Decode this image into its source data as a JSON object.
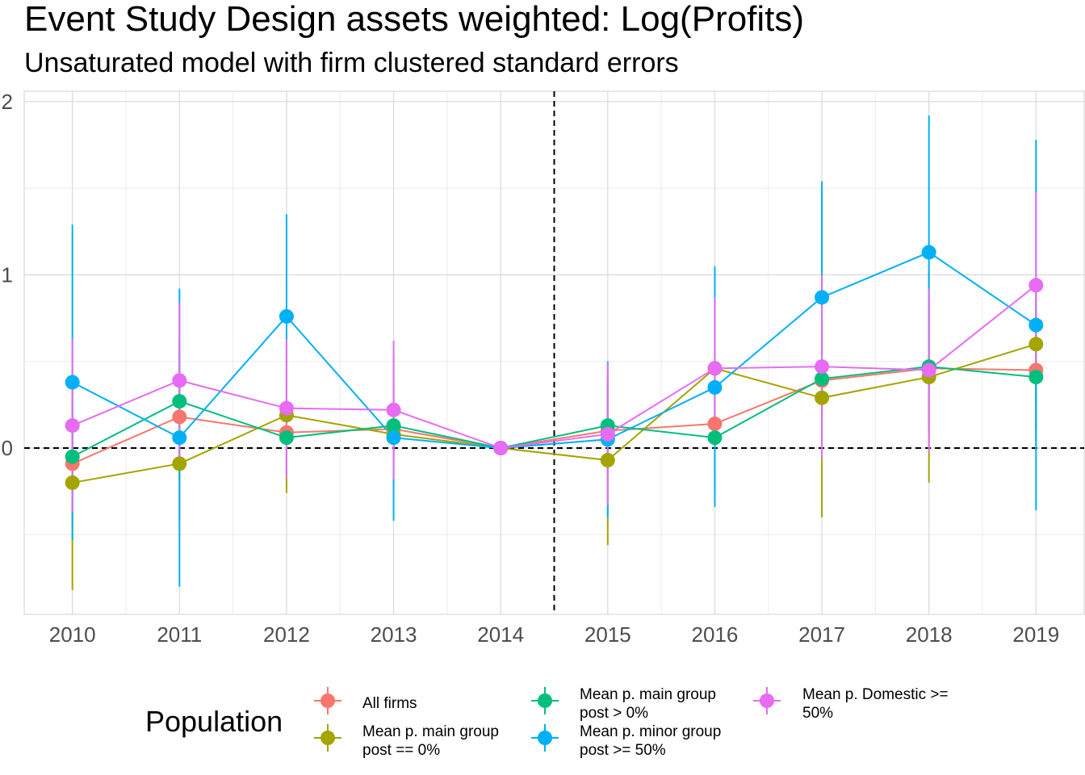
{
  "chart_data": {
    "type": "line",
    "title": "Event Study Design assets weighted: Log(Profits)",
    "subtitle": "Unsaturated model with firm clustered standard errors",
    "xlabel": "",
    "ylabel": "",
    "x": [
      "2010",
      "2011",
      "2012",
      "2013",
      "2014",
      "2015",
      "2016",
      "2017",
      "2018",
      "2019"
    ],
    "xlim": [
      2009.55,
      2019.45
    ],
    "ylim": [
      -0.96,
      2.06
    ],
    "yticks": [
      0,
      1,
      2
    ],
    "ytick_labels": [
      "0",
      "1",
      "2"
    ],
    "reference_lines": {
      "horizontal": 0,
      "vertical": 2014.5,
      "style": "dashed"
    },
    "grid": true,
    "legend": {
      "title": "Population",
      "position": "bottom"
    },
    "series": [
      {
        "name": "All firms",
        "color": "#F8766D",
        "values": [
          -0.09,
          0.18,
          0.09,
          0.11,
          0.0,
          0.1,
          0.14,
          0.39,
          0.46,
          0.45
        ],
        "ci_low": [
          -0.44,
          -0.2,
          -0.2,
          -0.15,
          0.0,
          -0.17,
          -0.13,
          0.04,
          0.07,
          0.1
        ],
        "ci_high": [
          0.26,
          0.56,
          0.38,
          0.37,
          0.0,
          0.37,
          0.41,
          0.74,
          0.85,
          0.8
        ]
      },
      {
        "name": "Mean p. main group\npost == 0%",
        "color": "#A3A500",
        "values": [
          -0.2,
          -0.09,
          0.19,
          0.08,
          0.0,
          -0.07,
          0.46,
          0.29,
          0.41,
          0.6
        ],
        "ci_low": [
          -0.82,
          -0.42,
          -0.26,
          -0.2,
          0.0,
          -0.56,
          0.1,
          -0.4,
          -0.2,
          0.25
        ],
        "ci_high": [
          0.42,
          0.24,
          0.64,
          0.36,
          0.0,
          0.42,
          0.82,
          0.98,
          1.02,
          0.95
        ]
      },
      {
        "name": "Mean p. main group\npost > 0%",
        "color": "#00BF7D",
        "values": [
          -0.05,
          0.27,
          0.06,
          0.13,
          0.0,
          0.13,
          0.06,
          0.4,
          0.47,
          0.41
        ],
        "ci_low": [
          -0.34,
          -0.1,
          -0.16,
          -0.12,
          0.0,
          -0.12,
          -0.25,
          0.05,
          0.1,
          0.04
        ],
        "ci_high": [
          0.24,
          0.64,
          0.28,
          0.38,
          0.0,
          0.38,
          0.37,
          0.75,
          0.84,
          0.78
        ]
      },
      {
        "name": "Mean p. minor group\npost >= 50%",
        "color": "#00B0F6",
        "values": [
          0.38,
          0.06,
          0.76,
          0.06,
          0.0,
          0.05,
          0.35,
          0.87,
          1.13,
          0.71
        ],
        "ci_low": [
          -0.53,
          -0.8,
          0.17,
          -0.42,
          0.0,
          -0.4,
          -0.34,
          0.2,
          0.34,
          -0.36
        ],
        "ci_high": [
          1.29,
          0.92,
          1.35,
          0.54,
          0.0,
          0.5,
          1.05,
          1.54,
          1.92,
          1.78
        ]
      },
      {
        "name": "Mean p. Domestic >=\n50%",
        "color": "#E76BF3",
        "values": [
          0.13,
          0.39,
          0.23,
          0.22,
          0.0,
          0.08,
          0.46,
          0.47,
          0.45,
          0.94
        ],
        "ci_low": [
          -0.37,
          -0.06,
          -0.17,
          -0.18,
          0.0,
          -0.33,
          0.05,
          -0.06,
          -0.02,
          0.4
        ],
        "ci_high": [
          0.63,
          0.84,
          0.63,
          0.62,
          0.0,
          0.49,
          0.87,
          1.0,
          0.92,
          1.48
        ]
      }
    ]
  }
}
